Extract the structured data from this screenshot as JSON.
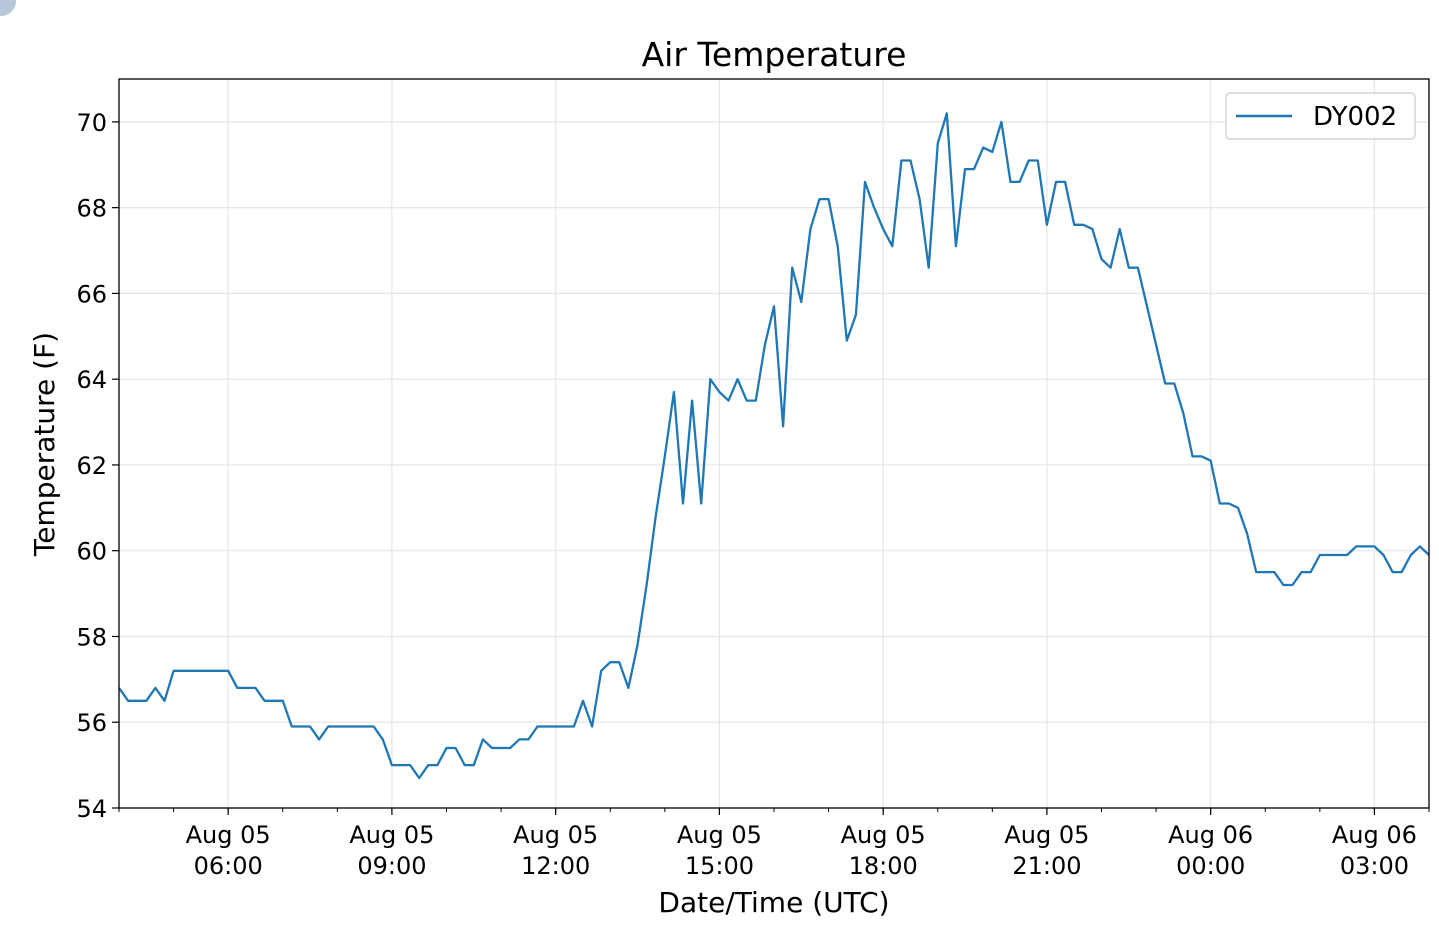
{
  "chart_data": {
    "type": "line",
    "title": "Air Temperature",
    "xlabel": "Date/Time (UTC)",
    "ylabel": "Temperature (F)",
    "x_range": [
      "2024-08-05T04:00",
      "2024-08-06T04:00"
    ],
    "ylim": [
      54,
      71
    ],
    "y_ticks": [
      54,
      56,
      58,
      60,
      62,
      64,
      66,
      68,
      70
    ],
    "x_ticks": [
      {
        "t": "2024-08-05T06:00",
        "line1": "Aug 05",
        "line2": "06:00"
      },
      {
        "t": "2024-08-05T09:00",
        "line1": "Aug 05",
        "line2": "09:00"
      },
      {
        "t": "2024-08-05T12:00",
        "line1": "Aug 05",
        "line2": "12:00"
      },
      {
        "t": "2024-08-05T15:00",
        "line1": "Aug 05",
        "line2": "15:00"
      },
      {
        "t": "2024-08-05T18:00",
        "line1": "Aug 05",
        "line2": "18:00"
      },
      {
        "t": "2024-08-05T21:00",
        "line1": "Aug 05",
        "line2": "21:00"
      },
      {
        "t": "2024-08-06T00:00",
        "line1": "Aug 06",
        "line2": "00:00"
      },
      {
        "t": "2024-08-06T03:00",
        "line1": "Aug 06",
        "line2": "03:00"
      }
    ],
    "grid": true,
    "legend_position": "top-right",
    "series": [
      {
        "name": "DY002",
        "color": "#1f77b4",
        "x": [
          "2024-08-05T04:00",
          "2024-08-05T04:10",
          "2024-08-05T04:20",
          "2024-08-05T04:30",
          "2024-08-05T04:40",
          "2024-08-05T04:50",
          "2024-08-05T05:00",
          "2024-08-05T05:10",
          "2024-08-05T05:20",
          "2024-08-05T05:30",
          "2024-08-05T05:40",
          "2024-08-05T05:50",
          "2024-08-05T06:00",
          "2024-08-05T06:10",
          "2024-08-05T06:20",
          "2024-08-05T06:30",
          "2024-08-05T06:40",
          "2024-08-05T06:50",
          "2024-08-05T07:00",
          "2024-08-05T07:10",
          "2024-08-05T07:20",
          "2024-08-05T07:30",
          "2024-08-05T07:40",
          "2024-08-05T07:50",
          "2024-08-05T08:00",
          "2024-08-05T08:10",
          "2024-08-05T08:20",
          "2024-08-05T08:30",
          "2024-08-05T08:40",
          "2024-08-05T08:50",
          "2024-08-05T09:00",
          "2024-08-05T09:10",
          "2024-08-05T09:20",
          "2024-08-05T09:30",
          "2024-08-05T09:40",
          "2024-08-05T09:50",
          "2024-08-05T10:00",
          "2024-08-05T10:10",
          "2024-08-05T10:20",
          "2024-08-05T10:30",
          "2024-08-05T10:40",
          "2024-08-05T10:50",
          "2024-08-05T11:00",
          "2024-08-05T11:10",
          "2024-08-05T11:20",
          "2024-08-05T11:30",
          "2024-08-05T11:40",
          "2024-08-05T11:50",
          "2024-08-05T12:00",
          "2024-08-05T12:10",
          "2024-08-05T12:20",
          "2024-08-05T12:30",
          "2024-08-05T12:40",
          "2024-08-05T12:50",
          "2024-08-05T13:00",
          "2024-08-05T13:10",
          "2024-08-05T13:20",
          "2024-08-05T13:30",
          "2024-08-05T13:40",
          "2024-08-05T13:50",
          "2024-08-05T14:00",
          "2024-08-05T14:10",
          "2024-08-05T14:20",
          "2024-08-05T14:30",
          "2024-08-05T14:40",
          "2024-08-05T14:50",
          "2024-08-05T15:00",
          "2024-08-05T15:10",
          "2024-08-05T15:20",
          "2024-08-05T15:30",
          "2024-08-05T15:40",
          "2024-08-05T15:50",
          "2024-08-05T16:00",
          "2024-08-05T16:10",
          "2024-08-05T16:20",
          "2024-08-05T16:30",
          "2024-08-05T16:40",
          "2024-08-05T16:50",
          "2024-08-05T17:00",
          "2024-08-05T17:10",
          "2024-08-05T17:20",
          "2024-08-05T17:30",
          "2024-08-05T17:40",
          "2024-08-05T17:50",
          "2024-08-05T18:00",
          "2024-08-05T18:10",
          "2024-08-05T18:20",
          "2024-08-05T18:30",
          "2024-08-05T18:40",
          "2024-08-05T18:50",
          "2024-08-05T19:00",
          "2024-08-05T19:10",
          "2024-08-05T19:20",
          "2024-08-05T19:30",
          "2024-08-05T19:40",
          "2024-08-05T19:50",
          "2024-08-05T20:00",
          "2024-08-05T20:10",
          "2024-08-05T20:20",
          "2024-08-05T20:30",
          "2024-08-05T20:40",
          "2024-08-05T20:50",
          "2024-08-05T21:00",
          "2024-08-05T21:10",
          "2024-08-05T21:20",
          "2024-08-05T21:30",
          "2024-08-05T21:40",
          "2024-08-05T21:50",
          "2024-08-05T22:00",
          "2024-08-05T22:10",
          "2024-08-05T22:20",
          "2024-08-05T22:30",
          "2024-08-05T22:40",
          "2024-08-05T22:50",
          "2024-08-05T23:00",
          "2024-08-05T23:10",
          "2024-08-05T23:20",
          "2024-08-05T23:30",
          "2024-08-05T23:40",
          "2024-08-05T23:50",
          "2024-08-06T00:00",
          "2024-08-06T00:10",
          "2024-08-06T00:20",
          "2024-08-06T00:30",
          "2024-08-06T00:40",
          "2024-08-06T00:50",
          "2024-08-06T01:00",
          "2024-08-06T01:10",
          "2024-08-06T01:20",
          "2024-08-06T01:30",
          "2024-08-06T01:40",
          "2024-08-06T01:50",
          "2024-08-06T02:00",
          "2024-08-06T02:10",
          "2024-08-06T02:20",
          "2024-08-06T02:30",
          "2024-08-06T02:40",
          "2024-08-06T02:50",
          "2024-08-06T03:00",
          "2024-08-06T03:10",
          "2024-08-06T03:20",
          "2024-08-06T03:30",
          "2024-08-06T03:40",
          "2024-08-06T03:50",
          "2024-08-06T04:00"
        ],
        "y": [
          56.8,
          56.5,
          56.5,
          56.5,
          56.8,
          56.5,
          57.2,
          57.2,
          57.2,
          57.2,
          57.2,
          57.2,
          57.2,
          56.8,
          56.8,
          56.8,
          56.5,
          56.5,
          56.5,
          55.9,
          55.9,
          55.9,
          55.6,
          55.9,
          55.9,
          55.9,
          55.9,
          55.9,
          55.9,
          55.6,
          55.0,
          55.0,
          55.0,
          54.7,
          55.0,
          55.0,
          55.4,
          55.4,
          55.0,
          55.0,
          55.6,
          55.4,
          55.4,
          55.4,
          55.6,
          55.6,
          55.9,
          55.9,
          55.9,
          55.9,
          55.9,
          56.5,
          55.9,
          57.2,
          57.4,
          57.4,
          56.8,
          57.8,
          59.2,
          60.8,
          62.2,
          63.7,
          61.1,
          63.5,
          61.1,
          64.0,
          63.7,
          63.5,
          64.0,
          63.5,
          63.5,
          64.8,
          65.7,
          62.9,
          66.6,
          65.8,
          67.5,
          68.2,
          68.2,
          67.1,
          64.9,
          65.5,
          68.6,
          68.0,
          67.5,
          67.1,
          69.1,
          69.1,
          68.2,
          66.6,
          69.5,
          70.2,
          67.1,
          68.9,
          68.9,
          69.4,
          69.3,
          70.0,
          68.6,
          68.6,
          69.1,
          69.1,
          67.6,
          68.6,
          68.6,
          67.6,
          67.6,
          67.5,
          66.8,
          66.6,
          67.5,
          66.6,
          66.6,
          65.7,
          64.8,
          63.9,
          63.9,
          63.2,
          62.2,
          62.2,
          62.1,
          61.1,
          61.1,
          61.0,
          60.4,
          59.5,
          59.5,
          59.5,
          59.2,
          59.2,
          59.5,
          59.5,
          59.9,
          59.9,
          59.9,
          59.9,
          60.1,
          60.1,
          60.1,
          59.9,
          59.5,
          59.5,
          59.9,
          60.1,
          59.9
        ]
      }
    ]
  }
}
